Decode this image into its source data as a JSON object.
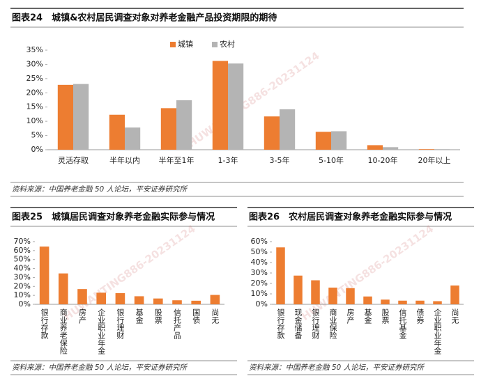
{
  "watermark": "HUWANTING886-20231124",
  "chart_data": [
    {
      "type": "bar",
      "title": "图表24　城镇&农村居民调查对象对养老金融产品投资期限的期待",
      "categories": [
        "灵活存取",
        "半年以内",
        "半年至1年",
        "1-3年",
        "3-5年",
        "5-10年",
        "10-20年",
        "20年以上"
      ],
      "series": [
        {
          "name": "城镇",
          "color": "#ed7d31",
          "values": [
            22.8,
            12.3,
            14.6,
            31.2,
            11.7,
            6.3,
            1.6,
            0.2
          ]
        },
        {
          "name": "农村",
          "color": "#b4b4b4",
          "values": [
            23.1,
            7.8,
            17.4,
            30.3,
            14.2,
            6.5,
            0.9,
            0.2
          ]
        }
      ],
      "ylim": [
        0,
        35
      ],
      "yticks": [
        {
          "value": 0,
          "label": "0%"
        },
        {
          "value": 5,
          "label": "5%"
        },
        {
          "value": 10,
          "label": "10%"
        },
        {
          "value": 15,
          "label": "15%"
        },
        {
          "value": 20,
          "label": "20%"
        },
        {
          "value": 25,
          "label": "25%"
        },
        {
          "value": 30,
          "label": "30%"
        },
        {
          "value": 35,
          "label": "35%"
        }
      ],
      "legend": "top",
      "source": "资料来源：中国养老金融 50 人论坛，平安证券研究所"
    },
    {
      "type": "bar",
      "title": "图表25　城镇居民调查对象养老金融实际参与情况",
      "categories": [
        "银行存款",
        "商业养老保险",
        "房产",
        "企业职业年金",
        "银行理财",
        "基金",
        "股票",
        "信托产品",
        "国债",
        "尚无"
      ],
      "values": [
        64.5,
        34.5,
        17,
        13,
        12.5,
        9,
        6.5,
        4.5,
        4,
        10.5
      ],
      "color": "#ed7d31",
      "ylim": [
        0,
        70
      ],
      "yticks": [
        {
          "value": 0,
          "label": "0%"
        },
        {
          "value": 10,
          "label": "10%"
        },
        {
          "value": 20,
          "label": "20%"
        },
        {
          "value": 30,
          "label": "30%"
        },
        {
          "value": 40,
          "label": "40%"
        },
        {
          "value": 50,
          "label": "50%"
        },
        {
          "value": 60,
          "label": "60%"
        },
        {
          "value": 70,
          "label": "70%"
        }
      ],
      "source": "资料来源：中国养老金融 50 人论坛，平安证券研究所"
    },
    {
      "type": "bar",
      "title": "图表26　农村居民调查对象养老金融实际参与情况",
      "categories": [
        "银行存款",
        "现金储备",
        "银行理财",
        "商业保险",
        "房产",
        "基金",
        "股票",
        "信托基金",
        "债券",
        "企业职业年金",
        "尚无"
      ],
      "values": [
        54.5,
        27.5,
        23,
        16,
        15.5,
        7.5,
        4.5,
        3.5,
        3.5,
        3,
        18
      ],
      "color": "#ed7d31",
      "ylim": [
        0,
        60
      ],
      "yticks": [
        {
          "value": 0,
          "label": "0%"
        },
        {
          "value": 10,
          "label": "10%"
        },
        {
          "value": 20,
          "label": "20%"
        },
        {
          "value": 30,
          "label": "30%"
        },
        {
          "value": 40,
          "label": "40%"
        },
        {
          "value": 50,
          "label": "50%"
        },
        {
          "value": 60,
          "label": "60%"
        }
      ],
      "source": "资料来源：中国养老金融 50 人论坛，平安证券研究所"
    }
  ]
}
